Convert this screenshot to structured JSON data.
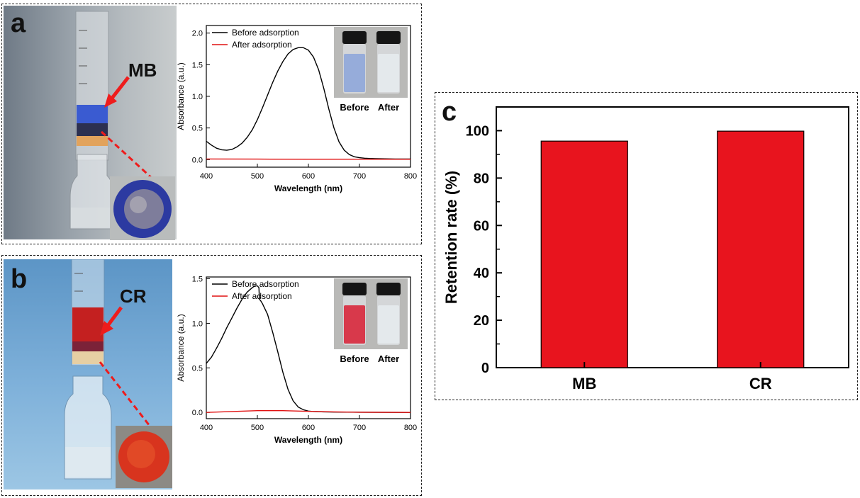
{
  "panels": {
    "a": {
      "letter": "a",
      "dye_label": "MB"
    },
    "b": {
      "letter": "b",
      "dye_label": "CR"
    },
    "c": {
      "letter": "c"
    }
  },
  "colors": {
    "before": "#000000",
    "after": "#e01010",
    "bar": "#e8141e",
    "mb_dye": "#3a5bd1",
    "cr_dye": "#c42020",
    "arrow": "#ee1c1c"
  },
  "chart_data": [
    {
      "id": "spectrum-mb",
      "type": "line",
      "xlabel": "Wavelength (nm)",
      "ylabel": "Absorbance (a.u.)",
      "xlim": [
        400,
        800
      ],
      "ylim": [
        -0.12,
        2.12
      ],
      "xticks": [
        "400",
        "500",
        "600",
        "700",
        "800"
      ],
      "yticks": [
        "0.0",
        "0.5",
        "1.0",
        "1.5",
        "2.0"
      ],
      "legend": [
        "Before adsorption",
        "After adsorption"
      ],
      "inset_labels": [
        "Before",
        "After"
      ],
      "series": [
        {
          "name": "Before adsorption",
          "x": [
            400,
            410,
            420,
            430,
            440,
            450,
            460,
            470,
            480,
            490,
            500,
            510,
            520,
            530,
            540,
            550,
            560,
            570,
            580,
            590,
            600,
            610,
            620,
            630,
            640,
            650,
            660,
            670,
            680,
            690,
            700,
            710,
            720,
            730,
            740,
            750,
            760,
            770,
            780,
            790,
            800
          ],
          "y": [
            0.29,
            0.23,
            0.18,
            0.155,
            0.148,
            0.16,
            0.2,
            0.26,
            0.35,
            0.47,
            0.63,
            0.82,
            1.02,
            1.22,
            1.4,
            1.55,
            1.67,
            1.74,
            1.77,
            1.77,
            1.73,
            1.62,
            1.42,
            1.13,
            0.8,
            0.5,
            0.28,
            0.15,
            0.08,
            0.045,
            0.03,
            0.022,
            0.018,
            0.015,
            0.013,
            0.012,
            0.011,
            0.01,
            0.01,
            0.01,
            0.01
          ]
        },
        {
          "name": "After adsorption",
          "x": [
            400,
            500,
            600,
            700,
            800
          ],
          "y": [
            0.01,
            0.008,
            0.006,
            0.005,
            0.005
          ]
        }
      ]
    },
    {
      "id": "spectrum-cr",
      "type": "line",
      "xlabel": "Wavelength (nm)",
      "ylabel": "Absorbance (a.u.)",
      "xlim": [
        400,
        800
      ],
      "ylim": [
        -0.07,
        1.52
      ],
      "xticks": [
        "400",
        "500",
        "600",
        "700",
        "800"
      ],
      "yticks": [
        "0.0",
        "0.5",
        "1.0",
        "1.5"
      ],
      "legend": [
        "Before adsorption",
        "After adsorption"
      ],
      "inset_labels": [
        "Before",
        "After"
      ],
      "series": [
        {
          "name": "Before adsorption",
          "x": [
            400,
            410,
            420,
            430,
            440,
            450,
            460,
            470,
            480,
            490,
            495,
            500,
            503,
            504,
            507,
            510,
            520,
            530,
            540,
            550,
            560,
            570,
            580,
            590,
            600,
            610,
            620,
            630,
            640,
            650,
            700,
            750,
            800
          ],
          "y": [
            0.55,
            0.62,
            0.72,
            0.83,
            0.95,
            1.06,
            1.17,
            1.27,
            1.35,
            1.4,
            1.42,
            1.42,
            1.4,
            1.27,
            1.25,
            1.22,
            1.1,
            0.9,
            0.68,
            0.45,
            0.26,
            0.13,
            0.06,
            0.03,
            0.015,
            0.01,
            0.008,
            0.006,
            0.005,
            0.004,
            0.002,
            0.001,
            0.0
          ]
        },
        {
          "name": "After adsorption",
          "x": [
            400,
            450,
            500,
            550,
            600,
            650,
            700,
            800
          ],
          "y": [
            0.0,
            0.01,
            0.02,
            0.02,
            0.012,
            0.006,
            0.002,
            0.0
          ]
        }
      ]
    },
    {
      "id": "retention",
      "type": "bar",
      "ylabel": "Retention rate (%)",
      "ylim": [
        0,
        110
      ],
      "yticks": [
        "0",
        "20",
        "40",
        "60",
        "80",
        "100"
      ],
      "categories": [
        "MB",
        "CR"
      ],
      "values": [
        95.6,
        99.8
      ]
    }
  ]
}
